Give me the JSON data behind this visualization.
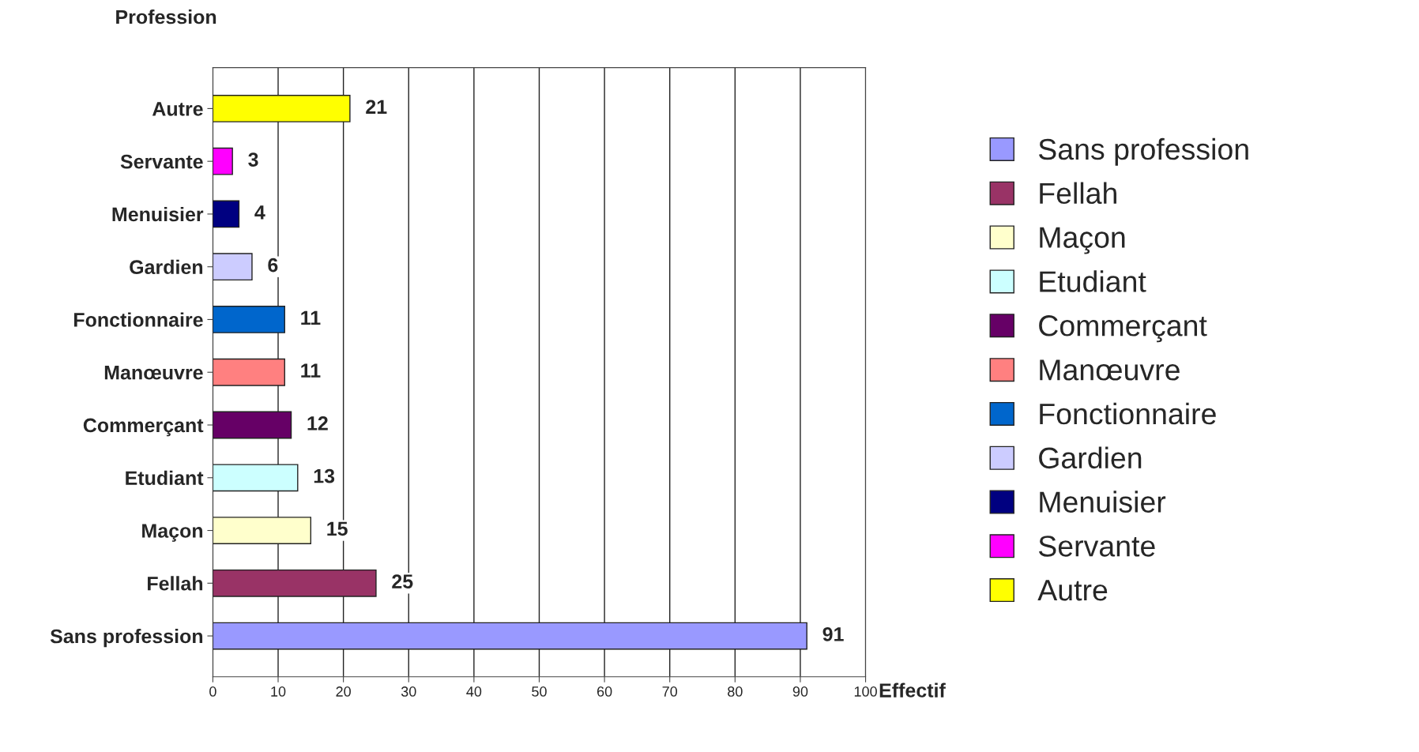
{
  "chart_data": {
    "type": "bar",
    "orientation": "horizontal",
    "ylabel": "Profession",
    "xlabel": "Effectif",
    "categories": [
      "Autre",
      "Servante",
      "Menuisier",
      "Gardien",
      "Fonctionnaire",
      "Manœuvre",
      "Commerçant",
      "Etudiant",
      "Maçon",
      "Fellah",
      "Sans profession"
    ],
    "series": [
      {
        "name": "Sans profession",
        "color": "#9999ff",
        "values": [
          null,
          null,
          null,
          null,
          null,
          null,
          null,
          null,
          null,
          null,
          91
        ]
      },
      {
        "name": "Fellah",
        "color": "#993366",
        "values": [
          null,
          null,
          null,
          null,
          null,
          null,
          null,
          null,
          null,
          25,
          null
        ]
      },
      {
        "name": "Maçon",
        "color": "#ffffcc",
        "values": [
          null,
          null,
          null,
          null,
          null,
          null,
          null,
          null,
          15,
          null,
          null
        ]
      },
      {
        "name": "Etudiant",
        "color": "#ccffff",
        "values": [
          null,
          null,
          null,
          null,
          null,
          null,
          null,
          13,
          null,
          null,
          null
        ]
      },
      {
        "name": "Commerçant",
        "color": "#660066",
        "values": [
          null,
          null,
          null,
          null,
          null,
          null,
          12,
          null,
          null,
          null,
          null
        ]
      },
      {
        "name": "Manœuvre",
        "color": "#ff8080",
        "values": [
          null,
          null,
          null,
          null,
          null,
          11,
          null,
          null,
          null,
          null,
          null
        ]
      },
      {
        "name": "Fonctionnaire",
        "color": "#0066cc",
        "values": [
          null,
          null,
          null,
          null,
          11,
          null,
          null,
          null,
          null,
          null,
          null
        ]
      },
      {
        "name": "Gardien",
        "color": "#ccccff",
        "values": [
          null,
          null,
          null,
          6,
          null,
          null,
          null,
          null,
          null,
          null,
          null
        ]
      },
      {
        "name": "Menuisier",
        "color": "#000080",
        "values": [
          null,
          null,
          4,
          null,
          null,
          null,
          null,
          null,
          null,
          null,
          null
        ]
      },
      {
        "name": "Servante",
        "color": "#ff00ff",
        "values": [
          null,
          3,
          null,
          null,
          null,
          null,
          null,
          null,
          null,
          null,
          null
        ]
      },
      {
        "name": "Autre",
        "color": "#ffff00",
        "values": [
          21,
          null,
          null,
          null,
          null,
          null,
          null,
          null,
          null,
          null,
          null
        ]
      }
    ],
    "xlim": [
      0,
      100
    ],
    "xticks": [
      0,
      10,
      20,
      30,
      40,
      50,
      60,
      70,
      80,
      90,
      100
    ],
    "grid": "x",
    "data_labels": true,
    "legend": "right"
  }
}
